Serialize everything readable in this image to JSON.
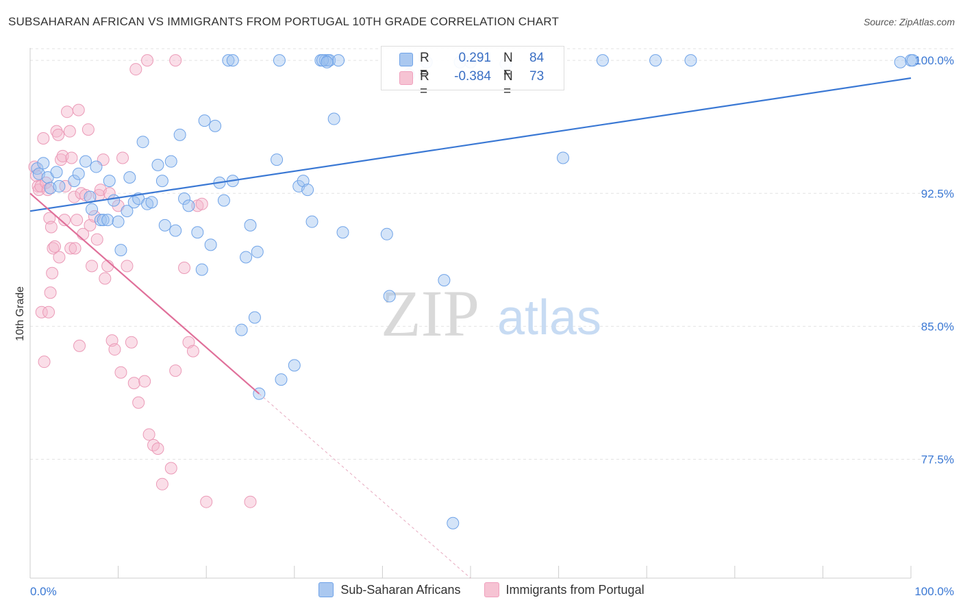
{
  "header": {
    "title": "SUBSAHARAN AFRICAN VS IMMIGRANTS FROM PORTUGAL 10TH GRADE CORRELATION CHART",
    "source": "Source: ZipAtlas.com"
  },
  "watermark": {
    "zip": "ZIP",
    "atlas": "atlas"
  },
  "stats_box": {
    "rows": [
      {
        "r_label": "R =",
        "r_value": "0.291",
        "n_label": "N =",
        "n_value": "84",
        "color": "#6fa3e8"
      },
      {
        "r_label": "R =",
        "r_value": "-0.384",
        "n_label": "N =",
        "n_value": "73",
        "color": "#f0a0bd"
      }
    ]
  },
  "legend": {
    "items": [
      {
        "label": "Sub-Saharan Africans",
        "color": "#aac8f0"
      },
      {
        "label": "Immigrants from Portugal",
        "color": "#f6c3d3"
      }
    ]
  },
  "chart_data": {
    "type": "scatter",
    "title": "SUBSAHARAN AFRICAN VS IMMIGRANTS FROM PORTUGAL 10TH GRADE CORRELATION CHART",
    "xlabel": "",
    "ylabel": "10th Grade",
    "xlim": [
      0,
      100
    ],
    "ylim": [
      70.8,
      100.7
    ],
    "x_tick_labels": [
      "0.0%",
      "100.0%"
    ],
    "y_ticks": [
      77.5,
      85.0,
      92.5,
      100.0
    ],
    "y_tick_labels": [
      "77.5%",
      "85.0%",
      "92.5%",
      "100.0%"
    ],
    "grid": "horizontal dashed",
    "colors": {
      "blue": "#3a78d4",
      "pink": "#e0709a"
    },
    "series": [
      {
        "name": "Sub-Saharan Africans",
        "r": 0.291,
        "n": 84,
        "trend": {
          "x": [
            0,
            100
          ],
          "y": [
            91.5,
            99.0
          ]
        },
        "points": [
          [
            0.8,
            93.9
          ],
          [
            1.0,
            93.6
          ],
          [
            1.5,
            94.2
          ],
          [
            2.0,
            93.4
          ],
          [
            2.3,
            92.8
          ],
          [
            3.0,
            93.7
          ],
          [
            3.3,
            92.9
          ],
          [
            5.0,
            93.2
          ],
          [
            5.5,
            93.6
          ],
          [
            6.3,
            94.3
          ],
          [
            6.8,
            92.3
          ],
          [
            7.0,
            91.6
          ],
          [
            7.5,
            94.0
          ],
          [
            8.0,
            91.0
          ],
          [
            8.3,
            91.0
          ],
          [
            8.8,
            91.0
          ],
          [
            9.0,
            93.2
          ],
          [
            9.5,
            92.1
          ],
          [
            10.0,
            90.9
          ],
          [
            10.3,
            89.3
          ],
          [
            11.0,
            91.5
          ],
          [
            11.3,
            93.4
          ],
          [
            11.8,
            92.0
          ],
          [
            12.3,
            92.2
          ],
          [
            12.8,
            95.4
          ],
          [
            13.3,
            91.9
          ],
          [
            13.8,
            92.0
          ],
          [
            14.5,
            94.1
          ],
          [
            15.0,
            93.2
          ],
          [
            15.3,
            90.7
          ],
          [
            16.0,
            94.3
          ],
          [
            16.5,
            90.4
          ],
          [
            17.0,
            95.8
          ],
          [
            17.5,
            92.2
          ],
          [
            18.0,
            91.8
          ],
          [
            19.0,
            90.3
          ],
          [
            19.5,
            88.2
          ],
          [
            19.8,
            96.6
          ],
          [
            20.5,
            89.6
          ],
          [
            21.0,
            96.3
          ],
          [
            21.5,
            93.1
          ],
          [
            22.0,
            92.1
          ],
          [
            23.0,
            93.2
          ],
          [
            24.0,
            84.8
          ],
          [
            24.5,
            88.9
          ],
          [
            25.0,
            90.7
          ],
          [
            25.5,
            85.5
          ],
          [
            25.8,
            89.2
          ],
          [
            26.0,
            81.2
          ],
          [
            28.0,
            94.4
          ],
          [
            28.5,
            82.0
          ],
          [
            30.0,
            82.8
          ],
          [
            30.5,
            92.9
          ],
          [
            31.0,
            93.2
          ],
          [
            31.5,
            92.7
          ],
          [
            32.0,
            90.9
          ],
          [
            33.0,
            100.0
          ],
          [
            33.5,
            100.0
          ],
          [
            33.8,
            100.0
          ],
          [
            34.0,
            100.0
          ],
          [
            34.5,
            96.7
          ],
          [
            35.0,
            100.0
          ],
          [
            35.5,
            90.3
          ],
          [
            40.5,
            90.2
          ],
          [
            40.8,
            86.7
          ],
          [
            47.0,
            87.6
          ],
          [
            48.0,
            73.9
          ],
          [
            60.5,
            94.5
          ],
          [
            22.5,
            100.0
          ],
          [
            23.0,
            100.0
          ],
          [
            28.3,
            100.0
          ],
          [
            33.2,
            100.0
          ],
          [
            43.0,
            99.2
          ],
          [
            54.0,
            99.8
          ],
          [
            65.0,
            100.0
          ],
          [
            71.0,
            100.0
          ],
          [
            75.0,
            100.0
          ],
          [
            100.0,
            100.0
          ],
          [
            100.2,
            100.0
          ],
          [
            98.8,
            99.9
          ],
          [
            45.0,
            99.9
          ],
          [
            48.8,
            99.9
          ],
          [
            50.0,
            99.9
          ],
          [
            33.7,
            99.9
          ]
        ]
      },
      {
        "name": "Immigrants from Portugal",
        "r": -0.384,
        "n": 73,
        "trend": {
          "x": [
            0,
            26
          ],
          "y": [
            92.5,
            81.2
          ]
        },
        "trend_dashed": {
          "x": [
            26,
            50
          ],
          "y": [
            81.2,
            70.8
          ]
        },
        "points": [
          [
            0.5,
            94.0
          ],
          [
            0.7,
            93.5
          ],
          [
            0.9,
            92.9
          ],
          [
            1.0,
            92.7
          ],
          [
            1.2,
            92.9
          ],
          [
            1.5,
            95.6
          ],
          [
            1.8,
            93.1
          ],
          [
            2.0,
            92.7
          ],
          [
            2.2,
            91.1
          ],
          [
            2.4,
            90.6
          ],
          [
            2.6,
            89.4
          ],
          [
            2.8,
            89.5
          ],
          [
            3.0,
            96.0
          ],
          [
            3.2,
            95.8
          ],
          [
            3.5,
            94.4
          ],
          [
            3.7,
            94.6
          ],
          [
            4.0,
            92.9
          ],
          [
            4.2,
            97.1
          ],
          [
            4.5,
            96.0
          ],
          [
            4.7,
            94.5
          ],
          [
            5.0,
            92.3
          ],
          [
            5.3,
            91.0
          ],
          [
            5.5,
            97.2
          ],
          [
            5.8,
            92.5
          ],
          [
            6.0,
            90.2
          ],
          [
            6.3,
            92.4
          ],
          [
            6.6,
            96.1
          ],
          [
            6.8,
            90.7
          ],
          [
            7.0,
            88.4
          ],
          [
            7.3,
            91.2
          ],
          [
            7.6,
            89.9
          ],
          [
            7.8,
            92.4
          ],
          [
            8.0,
            92.7
          ],
          [
            8.3,
            94.4
          ],
          [
            8.5,
            87.7
          ],
          [
            8.8,
            88.4
          ],
          [
            9.0,
            92.5
          ],
          [
            9.3,
            84.2
          ],
          [
            9.6,
            83.7
          ],
          [
            10.0,
            91.8
          ],
          [
            10.3,
            82.4
          ],
          [
            11.0,
            88.4
          ],
          [
            11.5,
            84.1
          ],
          [
            11.8,
            81.8
          ],
          [
            12.3,
            80.7
          ],
          [
            13.0,
            81.9
          ],
          [
            13.5,
            78.9
          ],
          [
            14.0,
            78.3
          ],
          [
            14.5,
            78.1
          ],
          [
            15.0,
            76.1
          ],
          [
            16.0,
            77.0
          ],
          [
            16.5,
            82.5
          ],
          [
            17.5,
            88.3
          ],
          [
            18.0,
            84.1
          ],
          [
            18.5,
            83.6
          ],
          [
            19.0,
            91.8
          ],
          [
            19.5,
            91.9
          ],
          [
            20.0,
            75.1
          ],
          [
            25.0,
            75.1
          ],
          [
            1.3,
            85.8
          ],
          [
            1.6,
            83.0
          ],
          [
            2.1,
            85.8
          ],
          [
            2.3,
            86.9
          ],
          [
            2.5,
            88.0
          ],
          [
            3.3,
            88.9
          ],
          [
            4.6,
            89.4
          ],
          [
            5.1,
            89.4
          ],
          [
            5.6,
            83.9
          ],
          [
            13.3,
            100.0
          ],
          [
            16.5,
            100.0
          ],
          [
            3.9,
            91.0
          ],
          [
            12.0,
            99.5
          ],
          [
            10.5,
            94.5
          ]
        ]
      }
    ]
  }
}
